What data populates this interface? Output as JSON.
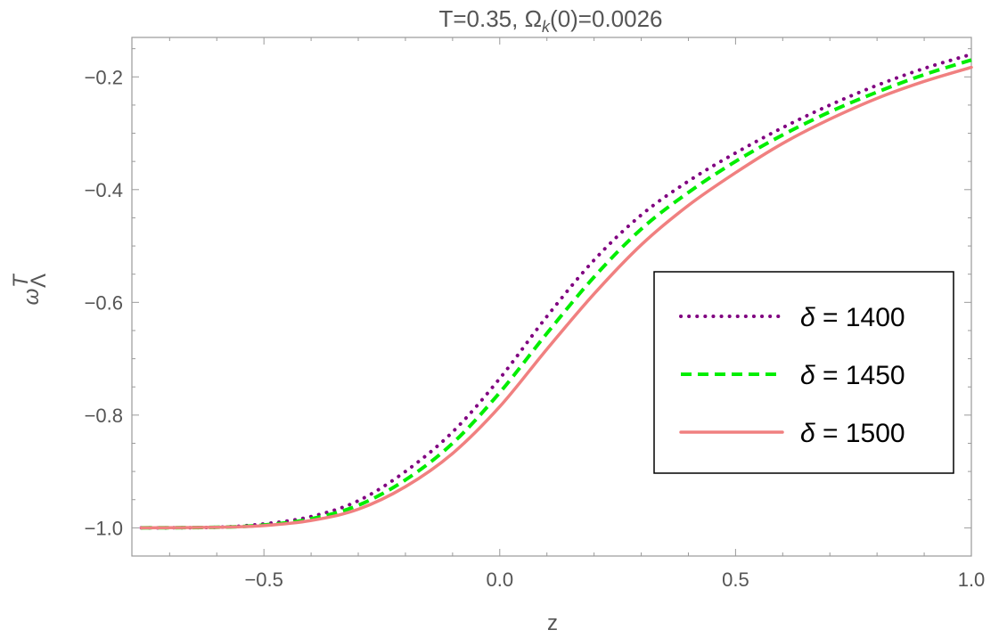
{
  "chart_data": {
    "type": "line",
    "title": "T=0.35, Ω_k(0)=0.0026",
    "title_parts": {
      "prefix": "T=0.35, Ω",
      "sub": "k",
      "suffix": "(0)=0.0026"
    },
    "xlabel": "z",
    "ylabel": "ω_Λ^T",
    "ylabel_parts": {
      "base": "ω",
      "sup": "T",
      "sub": "Λ"
    },
    "xlim": [
      -0.78,
      1.0
    ],
    "ylim": [
      -1.05,
      -0.13
    ],
    "x_ticks": [
      -0.5,
      0.0,
      0.5,
      1.0
    ],
    "x_tick_labels": [
      "−0.5",
      "0.0",
      "0.5",
      "1.0"
    ],
    "y_ticks": [
      -1.0,
      -0.8,
      -0.6,
      -0.4,
      -0.2
    ],
    "y_tick_labels": [
      "−1.0",
      "−0.8",
      "−0.6",
      "−0.4",
      "−0.2"
    ],
    "grid": false,
    "legend_position": "right",
    "series": [
      {
        "name": "δ = 1400",
        "legend_symbol": "δ",
        "legend_value": "= 1400",
        "color": "#800080",
        "style": "dotted",
        "x": [
          -0.76,
          -0.6,
          -0.5,
          -0.4,
          -0.3,
          -0.2,
          -0.1,
          0.0,
          0.1,
          0.2,
          0.3,
          0.4,
          0.5,
          0.6,
          0.7,
          0.8,
          0.9,
          1.0
        ],
        "y": [
          -1.0,
          -0.999,
          -0.993,
          -0.98,
          -0.952,
          -0.9,
          -0.83,
          -0.735,
          -0.625,
          -0.525,
          -0.445,
          -0.385,
          -0.335,
          -0.29,
          -0.25,
          -0.215,
          -0.185,
          -0.16
        ]
      },
      {
        "name": "δ = 1450",
        "legend_symbol": "δ",
        "legend_value": "= 1450",
        "color": "#00ee00",
        "style": "dashed",
        "x": [
          -0.76,
          -0.6,
          -0.5,
          -0.4,
          -0.3,
          -0.2,
          -0.1,
          0.0,
          0.1,
          0.2,
          0.3,
          0.4,
          0.5,
          0.6,
          0.7,
          0.8,
          0.9,
          1.0
        ],
        "y": [
          -1.0,
          -0.999,
          -0.995,
          -0.984,
          -0.96,
          -0.915,
          -0.85,
          -0.76,
          -0.655,
          -0.555,
          -0.47,
          -0.405,
          -0.35,
          -0.303,
          -0.262,
          -0.227,
          -0.196,
          -0.17
        ]
      },
      {
        "name": "δ = 1500",
        "legend_symbol": "δ",
        "legend_value": "= 1500",
        "color": "#f08080",
        "style": "solid",
        "x": [
          -0.76,
          -0.6,
          -0.5,
          -0.4,
          -0.3,
          -0.2,
          -0.1,
          0.0,
          0.1,
          0.2,
          0.3,
          0.4,
          0.5,
          0.6,
          0.7,
          0.8,
          0.9,
          1.0
        ],
        "y": [
          -1.0,
          -0.999,
          -0.996,
          -0.987,
          -0.967,
          -0.927,
          -0.868,
          -0.785,
          -0.683,
          -0.585,
          -0.498,
          -0.428,
          -0.37,
          -0.318,
          -0.275,
          -0.238,
          -0.208,
          -0.183
        ]
      }
    ]
  }
}
